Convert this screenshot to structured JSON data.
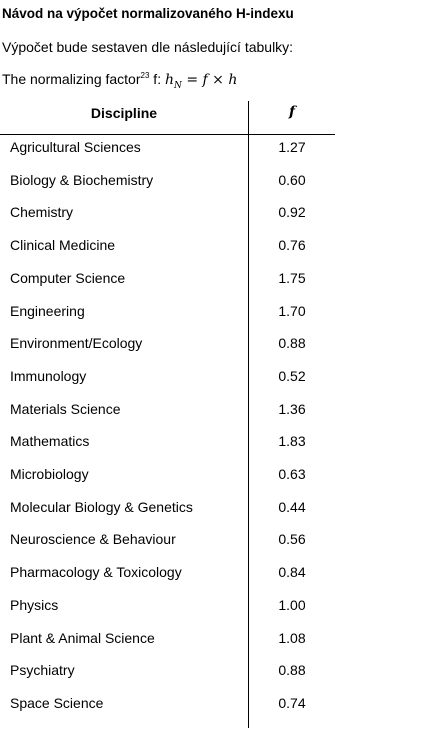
{
  "header": {
    "title": "Návod na výpočet normalizovaného H-indexu"
  },
  "intro": "Výpočet bude sestaven dle následující tabulky:",
  "formula_line": {
    "text": "The normalizing factor",
    "footnote": "23",
    "after": " f: ",
    "math": {
      "lhs": "h",
      "sub": "N",
      "eq": "=",
      "f": "f",
      "times": "×",
      "rhs": "h"
    }
  },
  "table": {
    "columns": [
      "Discipline",
      "f"
    ],
    "rows": [
      [
        "Agricultural Sciences",
        "1.27"
      ],
      [
        "Biology & Biochemistry",
        "0.60"
      ],
      [
        "Chemistry",
        "0.92"
      ],
      [
        "Clinical Medicine",
        "0.76"
      ],
      [
        "Computer Science",
        "1.75"
      ],
      [
        "Engineering",
        "1.70"
      ],
      [
        "Environment/Ecology",
        "0.88"
      ],
      [
        "Immunology",
        "0.52"
      ],
      [
        "Materials Science",
        "1.36"
      ],
      [
        "Mathematics",
        "1.83"
      ],
      [
        "Microbiology",
        "0.63"
      ],
      [
        "Molecular Biology & Genetics",
        "0.44"
      ],
      [
        "Neuroscience & Behaviour",
        "0.56"
      ],
      [
        "Pharmacology & Toxicology",
        "0.84"
      ],
      [
        "Physics",
        "1.00"
      ],
      [
        "Plant & Animal Science",
        "1.08"
      ],
      [
        "Psychiatry",
        "0.88"
      ],
      [
        "Space Science",
        "0.74"
      ]
    ]
  }
}
